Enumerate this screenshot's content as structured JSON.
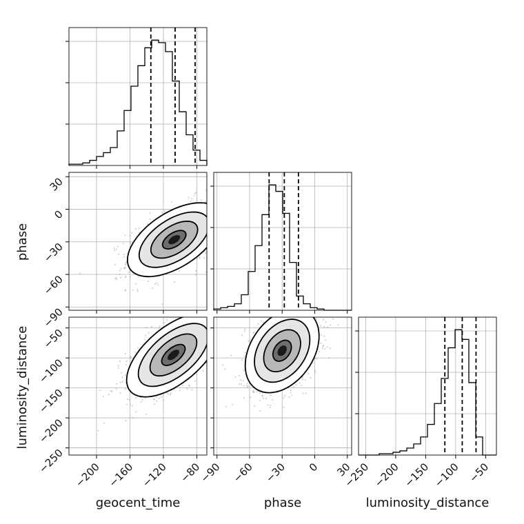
{
  "chart_data": {
    "type": "corner",
    "parameters": [
      {
        "name": "geocent_time",
        "label": "geocent_time",
        "range": [
          -233,
          -68
        ],
        "ticks": [
          -200,
          -160,
          -120,
          -80
        ],
        "tick_labels": [
          "−200",
          "−160",
          "−120",
          "−80"
        ],
        "quantiles": [
          -135,
          -106,
          -82
        ],
        "hist_edges_start": -233,
        "hist_bin_width": 8.25,
        "hist_counts": [
          1,
          1,
          2,
          4,
          7,
          10,
          14,
          27,
          43,
          62,
          78,
          92,
          98,
          96,
          89,
          66,
          42,
          24,
          12,
          4
        ]
      },
      {
        "name": "phase",
        "label": "phase",
        "range": [
          -93,
          34
        ],
        "ticks": [
          -90,
          -60,
          -30,
          0,
          30
        ],
        "tick_labels": [
          "−90",
          "−60",
          "−30",
          "0",
          "30"
        ],
        "quantiles": [
          -42,
          -28,
          -15
        ],
        "hist_edges_start": -93,
        "hist_bin_width": 6.35,
        "hist_counts": [
          1,
          2,
          3,
          5,
          12,
          30,
          50,
          74,
          97,
          92,
          75,
          37,
          11,
          5,
          2,
          1,
          0,
          0,
          0,
          0
        ]
      },
      {
        "name": "luminosity_distance",
        "label": "luminosity_distance",
        "range": [
          -262,
          -32
        ],
        "ticks": [
          -250,
          -200,
          -150,
          -100,
          -50
        ],
        "tick_labels": [
          "−250",
          "−200",
          "−150",
          "−100",
          "−50"
        ],
        "quantiles": [
          -118,
          -89,
          -66
        ],
        "hist_edges_start": -262,
        "hist_bin_width": 11.5,
        "hist_counts": [
          0,
          0,
          0,
          1,
          1,
          2,
          3,
          5,
          8,
          13,
          22,
          37,
          55,
          77,
          90,
          83,
          52,
          13,
          0,
          0
        ]
      }
    ],
    "pairs": [
      {
        "x": "geocent_time",
        "y": "phase",
        "mean": [
          -107,
          -28
        ],
        "sd": [
          28,
          17
        ],
        "corr": 0.55
      },
      {
        "x": "geocent_time",
        "y": "luminosity_distance",
        "mean": [
          -108,
          -95
        ],
        "sd": [
          28,
          35
        ],
        "corr": 0.6
      },
      {
        "x": "phase",
        "y": "luminosity_distance",
        "mean": [
          -30,
          -88
        ],
        "sd": [
          17,
          35
        ],
        "corr": 0.35
      }
    ],
    "contour_levels_sigma": [
      0.5,
      1.0,
      1.5,
      2.0
    ],
    "grid": true
  }
}
